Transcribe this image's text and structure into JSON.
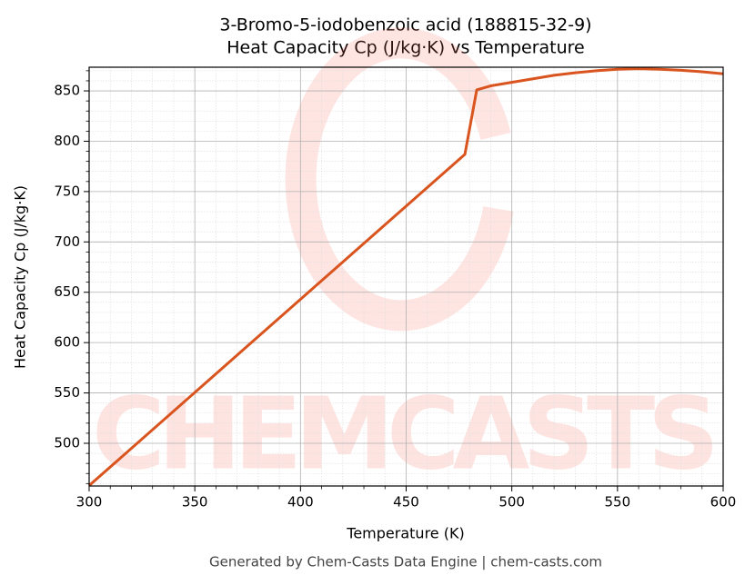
{
  "chart_data": {
    "type": "line",
    "title": "3-Bromo-5-iodobenzoic acid (188815-32-9)",
    "subtitle": "Heat Capacity Cp (J/kg·K) vs Temperature",
    "x_label": "Temperature (K)",
    "y_label": "Heat Capacity Cp (J/kg·K)",
    "footer": "Generated by Chem-Casts Data Engine | chem-casts.com",
    "watermark": "CHEMCASTS",
    "x": [
      300,
      477.8,
      483.4,
      490,
      500,
      510,
      520,
      530,
      540,
      550,
      560,
      570,
      580,
      590,
      600
    ],
    "series": [
      {
        "name": "Cp",
        "color": "#d9541e",
        "values": [
          458,
          787,
          851,
          855,
          858.5,
          862,
          865.5,
          868,
          870,
          871.5,
          872,
          871.5,
          870.5,
          869,
          867
        ]
      }
    ],
    "xlim": [
      300,
      600
    ],
    "ylim": [
      457.6,
      873.5
    ],
    "xticks": [
      300,
      350,
      400,
      450,
      500,
      550,
      600
    ],
    "yticks": [
      500,
      550,
      600,
      650,
      700,
      750,
      800,
      850
    ],
    "xticks_minor": [
      310,
      320,
      330,
      340,
      360,
      370,
      380,
      390,
      410,
      420,
      430,
      440,
      460,
      470,
      480,
      490,
      510,
      520,
      530,
      540,
      560,
      570,
      580,
      590
    ],
    "yticks_minor": [
      460,
      470,
      480,
      490,
      510,
      520,
      530,
      540,
      560,
      570,
      580,
      590,
      610,
      620,
      630,
      640,
      660,
      670,
      680,
      690,
      710,
      720,
      730,
      740,
      760,
      770,
      780,
      790,
      810,
      820,
      830,
      840,
      860,
      870
    ],
    "grid": true,
    "minor_grid": true
  }
}
